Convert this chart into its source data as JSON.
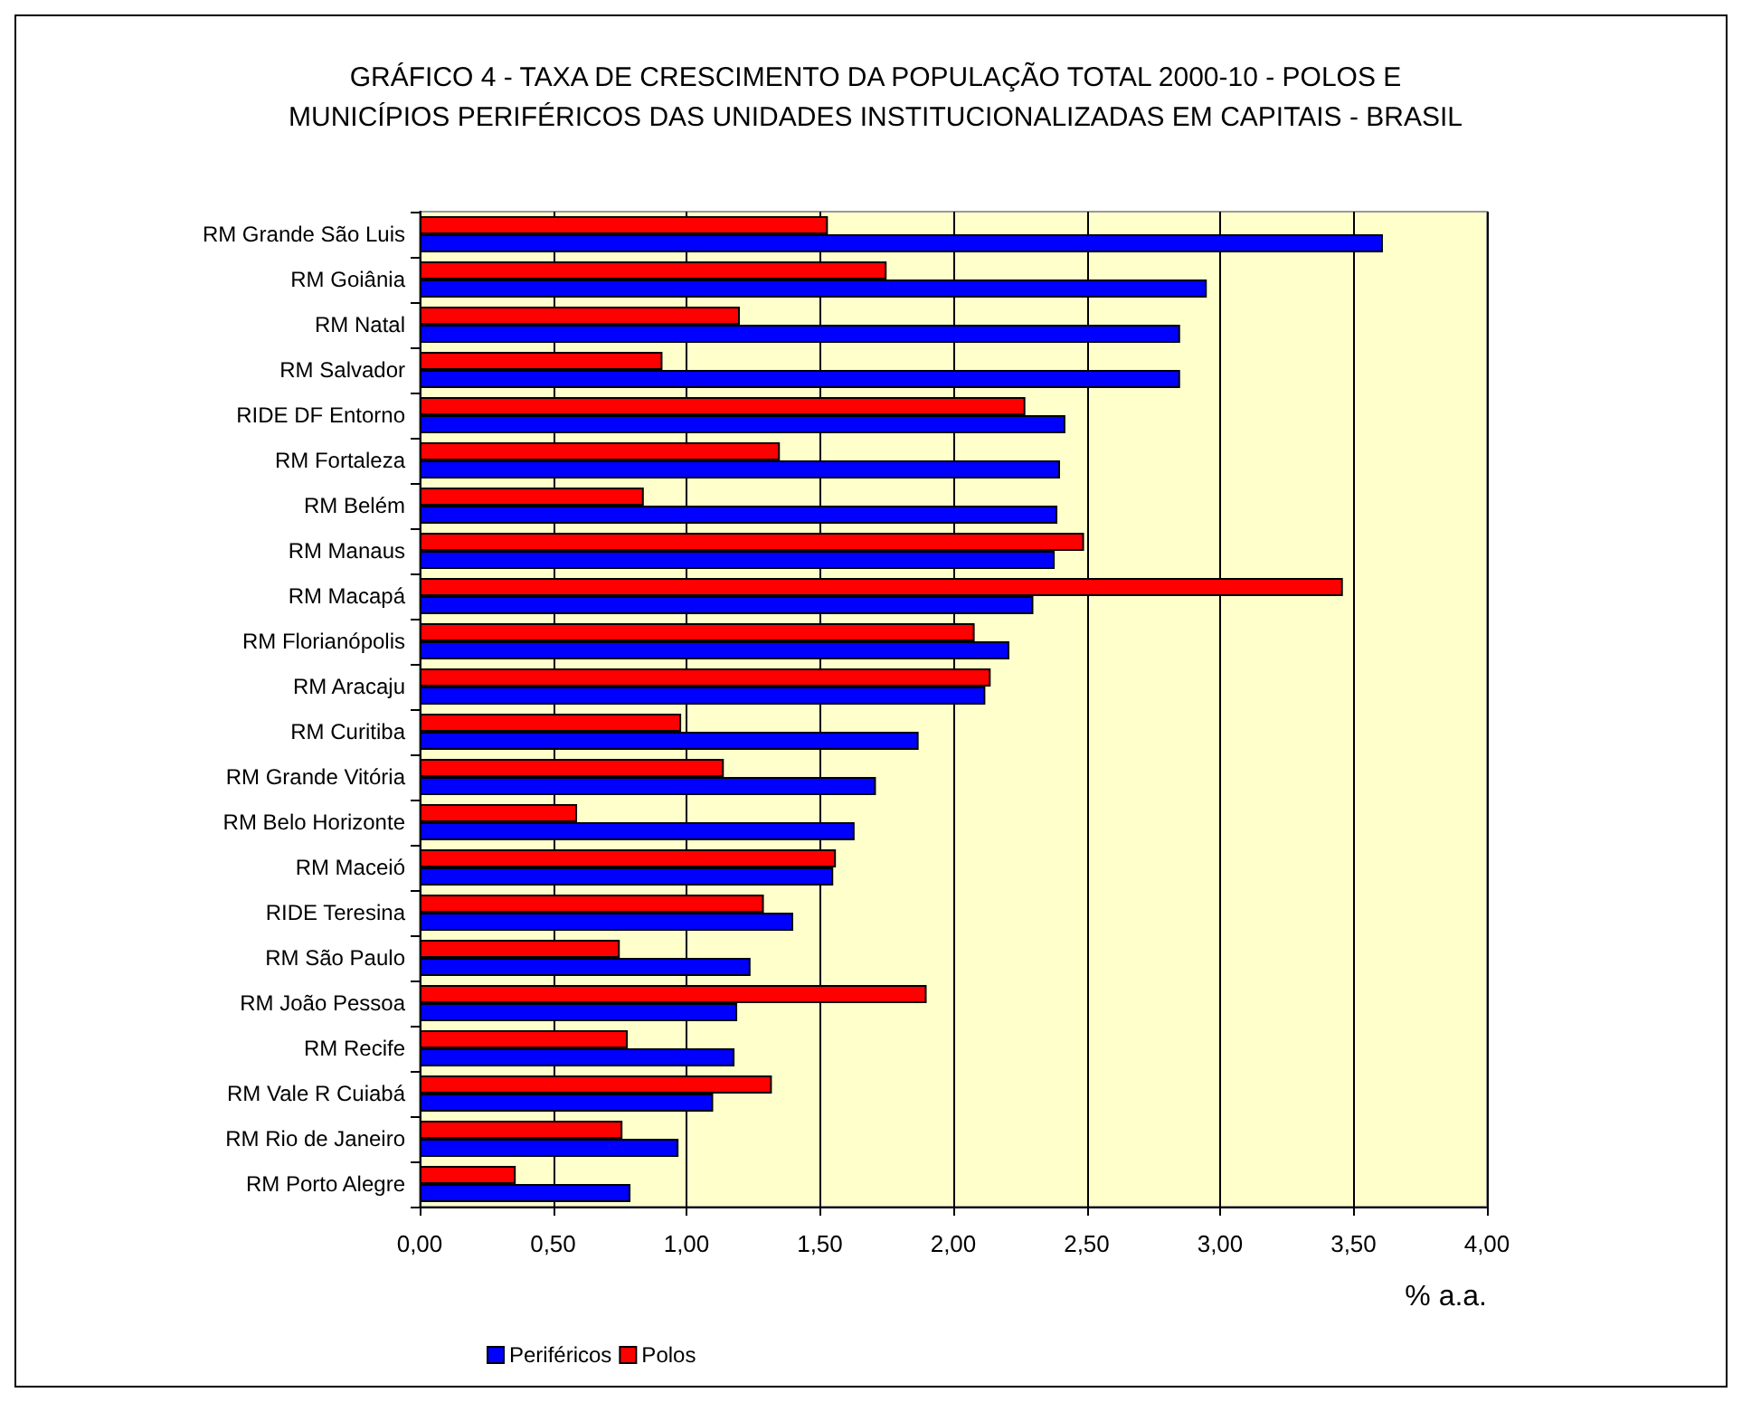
{
  "chart_data": {
    "type": "bar",
    "orientation": "horizontal",
    "title": "GRÁFICO 4 - TAXA DE CRESCIMENTO DA POPULAÇÃO TOTAL 2000-10 - POLOS E\nMUNICÍPIOS PERIFÉRICOS DAS UNIDADES INSTITUCIONALIZADAS EM CAPITAIS - BRASIL",
    "xlabel": "% a.a.",
    "categories": [
      "RM Grande São Luis",
      "RM Goiânia",
      "RM Natal",
      "RM Salvador",
      "RIDE DF Entorno",
      "RM Fortaleza",
      "RM Belém",
      "RM Manaus",
      "RM Macapá",
      "RM Florianópolis",
      "RM Aracaju",
      "RM Curitiba",
      "RM Grande Vitória",
      "RM Belo Horizonte",
      "RM Maceió",
      "RIDE Teresina",
      "RM São Paulo",
      "RM João Pessoa",
      "RM Recife",
      "RM Vale R Cuiabá",
      "RM Rio de Janeiro",
      "RM Porto Alegre"
    ],
    "series": [
      {
        "name": "Periféricos",
        "color": "#0000ff",
        "values": [
          3.61,
          2.95,
          2.85,
          2.85,
          2.42,
          2.4,
          2.39,
          2.38,
          2.3,
          2.21,
          2.12,
          1.87,
          1.71,
          1.63,
          1.55,
          1.4,
          1.24,
          1.19,
          1.18,
          1.1,
          0.97,
          0.79
        ]
      },
      {
        "name": "Polos",
        "color": "#ff0000",
        "values": [
          1.53,
          1.75,
          1.2,
          0.91,
          2.27,
          1.35,
          0.84,
          2.49,
          3.46,
          2.08,
          2.14,
          0.98,
          1.14,
          0.59,
          1.56,
          1.29,
          0.75,
          1.9,
          0.78,
          1.32,
          0.76,
          0.36
        ]
      }
    ],
    "xlim": [
      0,
      4
    ],
    "xticks": [
      {
        "value": 0,
        "label": "0,00"
      },
      {
        "value": 0.5,
        "label": "0,50"
      },
      {
        "value": 1,
        "label": "1,00"
      },
      {
        "value": 1.5,
        "label": "1,50"
      },
      {
        "value": 2,
        "label": "2,00"
      },
      {
        "value": 2.5,
        "label": "2,50"
      },
      {
        "value": 3,
        "label": "3,00"
      },
      {
        "value": 3.5,
        "label": "3,50"
      },
      {
        "value": 4,
        "label": "4,00"
      }
    ],
    "grid": "x",
    "legend": "bottom"
  }
}
